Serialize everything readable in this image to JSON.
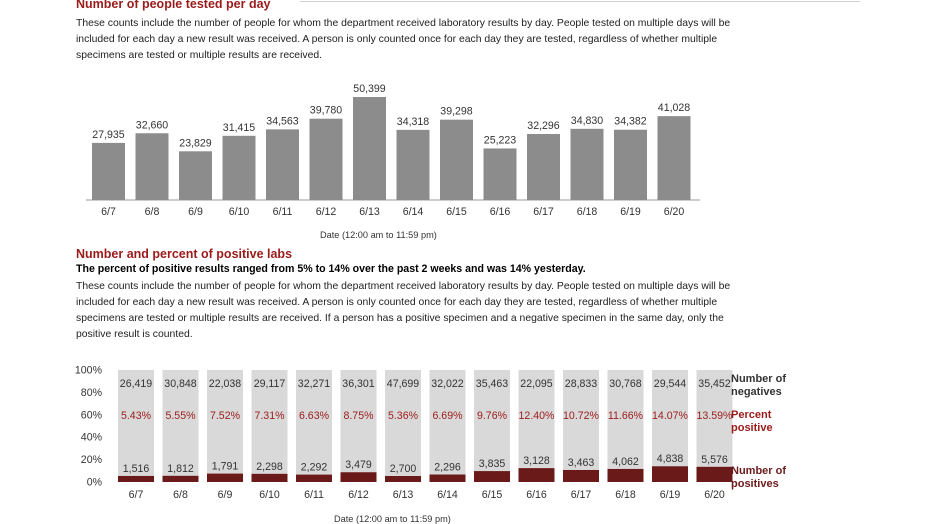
{
  "section1": {
    "title": "Number of people tested per day",
    "description": "These counts include the number of people for whom the department received laboratory results by day. People tested on multiple days will be included for each day a new result was received. A person is only counted once for each day they are tested, regardless of whether multiple specimens are tested or multiple results are received."
  },
  "section2": {
    "title": "Number and percent of positive labs",
    "summary": "The percent of positive results ranged from 5% to 14% over the past 2 weeks and was 14% yesterday.",
    "description": "These counts include the number of people for whom the department received laboratory results by day. People tested on multiple days will be included for each day a new result was received. A person is only counted once for each day they are tested, regardless of whether multiple specimens are tested or multiple results are received. If a person has a positive specimen and a negative specimen in the same day, only the positive result is counted."
  },
  "colors": {
    "bar_gray": "#8c8c8c",
    "negatives_gray": "#d9d9d9",
    "positives_red": "#6b1a1a",
    "percent_red": "#9b1b1b"
  },
  "chart_data": [
    {
      "type": "bar",
      "xlabel": "Date (12:00 am to 11:59 pm)",
      "categories": [
        "6/7",
        "6/8",
        "6/9",
        "6/10",
        "6/11",
        "6/12",
        "6/13",
        "6/14",
        "6/15",
        "6/16",
        "6/17",
        "6/18",
        "6/19",
        "6/20"
      ],
      "values": [
        27935,
        32660,
        23829,
        31415,
        34563,
        39780,
        50399,
        34318,
        39298,
        25223,
        32296,
        34830,
        34382,
        41028
      ],
      "value_labels": [
        "27,935",
        "32,660",
        "23,829",
        "31,415",
        "34,563",
        "39,780",
        "50,399",
        "34,318",
        "39,298",
        "25,223",
        "32,296",
        "34,830",
        "34,382",
        "41,028"
      ],
      "ylim": [
        0,
        52000
      ],
      "grid": false
    },
    {
      "type": "bar",
      "stacked": "percent",
      "xlabel": "Date (12:00 am to 11:59 pm)",
      "categories": [
        "6/7",
        "6/8",
        "6/9",
        "6/10",
        "6/11",
        "6/12",
        "6/13",
        "6/14",
        "6/15",
        "6/16",
        "6/17",
        "6/18",
        "6/19",
        "6/20"
      ],
      "y_ticks": [
        "0%",
        "20%",
        "40%",
        "60%",
        "80%",
        "100%"
      ],
      "ylim": [
        0,
        100
      ],
      "series": [
        {
          "name": "Number of positives",
          "values": [
            1516,
            1812,
            1791,
            2298,
            2292,
            3479,
            2700,
            2296,
            3835,
            3128,
            3463,
            4062,
            4838,
            5576
          ],
          "labels": [
            "1,516",
            "1,812",
            "1,791",
            "2,298",
            "2,292",
            "3,479",
            "2,700",
            "2,296",
            "3,835",
            "3,128",
            "3,463",
            "4,062",
            "4,838",
            "5,576"
          ]
        },
        {
          "name": "Number of negatives",
          "values": [
            26419,
            30848,
            22038,
            29117,
            32271,
            36301,
            47699,
            32022,
            35463,
            22095,
            28833,
            30768,
            29544,
            35452
          ],
          "labels": [
            "26,419",
            "30,848",
            "22,038",
            "29,117",
            "32,271",
            "36,301",
            "47,699",
            "32,022",
            "35,463",
            "22,095",
            "28,833",
            "30,768",
            "29,544",
            "35,452"
          ]
        }
      ],
      "percent_positive": {
        "name": "Percent positive",
        "values": [
          5.43,
          5.55,
          7.52,
          7.31,
          6.63,
          8.75,
          5.36,
          6.69,
          9.76,
          12.4,
          10.72,
          11.66,
          14.07,
          13.59
        ],
        "labels": [
          "5.43%",
          "5.55%",
          "7.52%",
          "7.31%",
          "6.63%",
          "8.75%",
          "5.36%",
          "6.69%",
          "9.76%",
          "12.40%",
          "10.72%",
          "11.66%",
          "14.07%",
          "13.59%"
        ]
      },
      "legend_placement": "right"
    }
  ]
}
